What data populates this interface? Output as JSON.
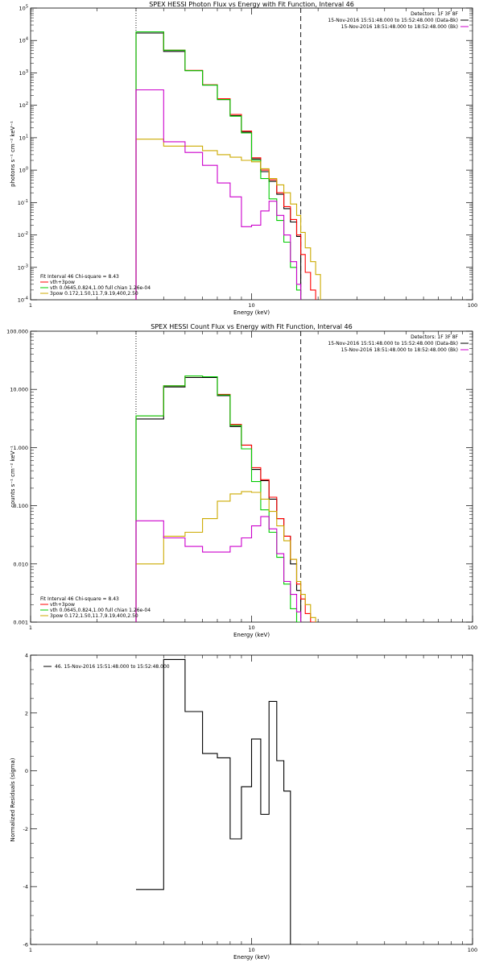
{
  "chart_data": [
    {
      "type": "line",
      "title": "SPEX HESSI Photon Flux vs Energy with Fit Function, Interval 46",
      "xlabel": "Energy (keV)",
      "ylabel": "photons s⁻¹ cm⁻² keV⁻¹",
      "xscale": "log",
      "yscale": "log",
      "xlim": [
        1,
        100
      ],
      "ylim": [
        0.0001,
        100000
      ],
      "xticks": [
        "1",
        "10",
        "100"
      ],
      "yticks": [
        {
          "base": "10",
          "exp": "5"
        },
        {
          "base": "10",
          "exp": "4"
        },
        {
          "base": "10",
          "exp": "3"
        },
        {
          "base": "10",
          "exp": "2"
        },
        {
          "base": "10",
          "exp": "1"
        },
        {
          "base": "10",
          "exp": "0"
        },
        {
          "base": "10",
          "exp": "-1"
        },
        {
          "base": "10",
          "exp": "-2"
        },
        {
          "base": "10",
          "exp": "-3"
        },
        {
          "base": "10",
          "exp": "-4"
        }
      ],
      "vlines": [
        {
          "x": 3.0,
          "style": "dotted"
        },
        {
          "x": 16.7,
          "style": "dashed"
        }
      ],
      "legend_top": [
        {
          "text": "Detectors: 1F 3F 8F",
          "color": "#000000"
        },
        {
          "text": "15-Nov-2016 15:51:48.000 to 15:52:48.000 (Data-Bk)",
          "color": "#000000"
        },
        {
          "text": "15-Nov-2016 18:51:48.000 to 18:52:48.000 (Bk)",
          "color": "#cc00cc"
        }
      ],
      "legend_bottom": [
        {
          "text": "Fit Interval  46    Chi-square = 8.43",
          "color": "#000000"
        },
        {
          "text": "vth+3pow",
          "color": "#ff0000"
        },
        {
          "text": "vth 0.0645,0.824,1.00  full chian 1.26e-04",
          "color": "#00cc00"
        },
        {
          "text": "3pow 0.172,1.50,11.7,9.19,400,2.50",
          "color": "#ccaa00"
        }
      ],
      "x_edges": [
        3.0,
        3.5,
        4.0,
        4.5,
        5.0,
        5.5,
        6.0,
        6.5,
        7.0,
        7.5,
        8.0,
        8.5,
        9.0,
        9.5,
        10.0,
        10.5,
        11.0,
        11.5,
        12.0,
        12.5,
        13.0,
        13.5,
        14.0,
        14.5,
        15.0,
        15.5,
        16.0,
        16.7,
        17.5,
        18.5,
        19.5,
        20.5
      ],
      "series": [
        {
          "name": "Data-Bk",
          "color": "#000000",
          "values": [
            17000,
            17000,
            4600,
            4600,
            1180,
            1180,
            420,
            420,
            150,
            150,
            48,
            48,
            15,
            15,
            2.2,
            2.2,
            0.9,
            0.9,
            0.45,
            0.45,
            0.18,
            0.18,
            0.065,
            0.065,
            0.025,
            0.025,
            0.009,
            null,
            null,
            null,
            null
          ]
        },
        {
          "name": "vth+3pow",
          "color": "#ff0000",
          "values": [
            18500,
            18500,
            5000,
            5000,
            1200,
            1200,
            430,
            430,
            160,
            160,
            52,
            52,
            16,
            16,
            2.4,
            2.4,
            1.0,
            1.0,
            0.5,
            0.5,
            0.2,
            0.2,
            0.075,
            0.075,
            0.03,
            0.03,
            0.01,
            0.0025,
            0.0007,
            0.0002,
            null
          ]
        },
        {
          "name": "vth",
          "color": "#00cc00",
          "values": [
            18500,
            18500,
            5000,
            5000,
            1170,
            1170,
            420,
            420,
            150,
            150,
            46,
            46,
            14,
            14,
            2.0,
            2.0,
            0.55,
            0.55,
            0.13,
            0.13,
            0.028,
            0.028,
            0.006,
            0.006,
            0.001,
            0.001,
            0.0002,
            null,
            null,
            null,
            null
          ]
        },
        {
          "name": "3pow",
          "color": "#ccaa00",
          "values": [
            9,
            9,
            5.5,
            5.5,
            5.5,
            5.5,
            4,
            4,
            3,
            3,
            2.5,
            2.5,
            2,
            2,
            1.8,
            1.8,
            1.1,
            1.1,
            0.55,
            0.55,
            0.35,
            0.35,
            0.2,
            0.2,
            0.09,
            0.09,
            0.04,
            0.012,
            0.004,
            0.0015,
            0.0006
          ]
        },
        {
          "name": "Bk",
          "color": "#cc00cc",
          "values": [
            300,
            300,
            7.5,
            7.5,
            3.5,
            3.5,
            1.4,
            1.4,
            0.4,
            0.4,
            0.15,
            0.15,
            0.018,
            0.018,
            0.02,
            0.02,
            0.055,
            0.055,
            0.11,
            0.11,
            0.04,
            0.04,
            0.01,
            0.01,
            0.0015,
            0.0015,
            0.0003,
            null,
            null,
            null,
            null
          ]
        }
      ]
    },
    {
      "type": "line",
      "title": "SPEX HESSI Count Flux vs Energy with Fit Function, Interval 46",
      "xlabel": "Energy (keV)",
      "ylabel": "counts s⁻¹ cm⁻² keV⁻¹",
      "xscale": "log",
      "yscale": "log",
      "xlim": [
        1,
        100
      ],
      "ylim": [
        0.001,
        100
      ],
      "xticks": [
        "1",
        "10",
        "100"
      ],
      "yticks": [
        {
          "base": "100.000",
          "exp": ""
        },
        {
          "base": "10.000",
          "exp": ""
        },
        {
          "base": "1.000",
          "exp": ""
        },
        {
          "base": "0.100",
          "exp": ""
        },
        {
          "base": "0.010",
          "exp": ""
        },
        {
          "base": "0.001",
          "exp": ""
        }
      ],
      "vlines": [
        {
          "x": 3.0,
          "style": "dotted"
        },
        {
          "x": 16.7,
          "style": "dashed"
        }
      ],
      "legend_top": [
        {
          "text": "Detectors: 1F 3F 8F",
          "color": "#000000"
        },
        {
          "text": "15-Nov-2016 15:51:48.000 to 15:52:48.000 (Data-Bk)",
          "color": "#000000"
        },
        {
          "text": "15-Nov-2016 18:51:48.000 to 18:52:48.000 (Bk)",
          "color": "#cc00cc"
        }
      ],
      "legend_bottom": [
        {
          "text": "Fit Interval  46    Chi-square = 8.43",
          "color": "#000000"
        },
        {
          "text": "vth+3pow",
          "color": "#ff0000"
        },
        {
          "text": "vth 0.0645,0.824,1.00  full chian 1.26e-04",
          "color": "#00cc00"
        },
        {
          "text": "3pow 0.172,1.50,11.7,9.19,400,2.50",
          "color": "#ccaa00"
        }
      ],
      "x_edges": [
        3.0,
        3.5,
        4.0,
        4.5,
        5.0,
        5.5,
        6.0,
        6.5,
        7.0,
        7.5,
        8.0,
        8.5,
        9.0,
        9.5,
        10.0,
        10.5,
        11.0,
        11.5,
        12.0,
        12.5,
        13.0,
        13.5,
        14.0,
        14.5,
        15.0,
        15.5,
        16.0,
        16.7,
        17.5,
        18.5,
        19.5,
        20.5
      ],
      "series": [
        {
          "name": "Data-Bk",
          "color": "#000000",
          "values": [
            3.1,
            3.1,
            11,
            11,
            16,
            16,
            16,
            16,
            7.8,
            7.8,
            2.3,
            2.3,
            1.1,
            1.1,
            0.42,
            0.42,
            0.27,
            0.27,
            0.13,
            0.13,
            0.06,
            0.06,
            0.03,
            0.03,
            0.01,
            0.01,
            0.0035,
            null,
            null,
            null,
            null
          ]
        },
        {
          "name": "vth+3pow",
          "color": "#ff0000",
          "values": [
            3.5,
            3.5,
            11.5,
            11.5,
            17,
            17,
            16.5,
            16.5,
            8.2,
            8.2,
            2.5,
            2.5,
            1.1,
            1.1,
            0.45,
            0.45,
            0.28,
            0.28,
            0.14,
            0.14,
            0.06,
            0.06,
            0.03,
            0.03,
            0.012,
            0.012,
            0.0045,
            0.0025,
            0.0014,
            0.001,
            null
          ]
        },
        {
          "name": "vth",
          "color": "#00cc00",
          "values": [
            3.5,
            3.5,
            11.5,
            11.5,
            17,
            17,
            16.5,
            16.5,
            8,
            8,
            2.4,
            2.4,
            0.95,
            0.95,
            0.26,
            0.26,
            0.085,
            0.085,
            0.035,
            0.035,
            0.013,
            0.013,
            0.0045,
            0.0045,
            0.0017,
            0.0017,
            0.0007,
            null,
            null,
            null,
            null
          ]
        },
        {
          "name": "3pow",
          "color": "#ccaa00",
          "values": [
            0.01,
            0.01,
            0.03,
            0.03,
            0.035,
            0.035,
            0.06,
            0.06,
            0.12,
            0.12,
            0.16,
            0.16,
            0.175,
            0.175,
            0.17,
            0.17,
            0.13,
            0.13,
            0.08,
            0.08,
            0.045,
            0.045,
            0.025,
            0.025,
            0.012,
            0.012,
            0.005,
            0.003,
            0.002,
            0.0012,
            null
          ]
        },
        {
          "name": "Bk",
          "color": "#cc00cc",
          "values": [
            0.055,
            0.055,
            0.028,
            0.028,
            0.02,
            0.02,
            0.016,
            0.016,
            0.016,
            0.016,
            0.02,
            0.02,
            0.028,
            0.028,
            0.045,
            0.045,
            0.065,
            0.065,
            0.04,
            0.04,
            0.015,
            0.015,
            0.005,
            0.005,
            0.003,
            0.003,
            0.0015,
            null,
            null,
            null,
            null
          ]
        }
      ]
    },
    {
      "type": "line",
      "title": "",
      "xlabel": "Energy (keV)",
      "ylabel": "Normalized Residuals (sigma)",
      "xscale": "log",
      "yscale": "linear",
      "xlim": [
        1,
        100
      ],
      "ylim": [
        -6,
        4
      ],
      "xticks": [
        "1",
        "10",
        "100"
      ],
      "yticks": [
        {
          "base": "4",
          "exp": ""
        },
        {
          "base": "2",
          "exp": ""
        },
        {
          "base": "0",
          "exp": ""
        },
        {
          "base": "-2",
          "exp": ""
        },
        {
          "base": "-4",
          "exp": ""
        },
        {
          "base": "-6",
          "exp": ""
        }
      ],
      "legend_top": [
        {
          "text": "46. 15-Nov-2016 15:51:48.000 to 15:52:48.000",
          "color": "#000000"
        }
      ],
      "x_edges": [
        3.0,
        4.0,
        5.0,
        6.0,
        7.0,
        8.0,
        9.0,
        10.0,
        11.0,
        12.0,
        13.0,
        14.0,
        15.0,
        16.7
      ],
      "series": [
        {
          "name": "",
          "color": "#000000",
          "values": [
            -4.1,
            3.85,
            2.05,
            0.6,
            0.45,
            -2.35,
            -0.55,
            1.1,
            -1.5,
            2.4,
            0.35,
            -0.7,
            -6.0
          ]
        }
      ]
    }
  ]
}
